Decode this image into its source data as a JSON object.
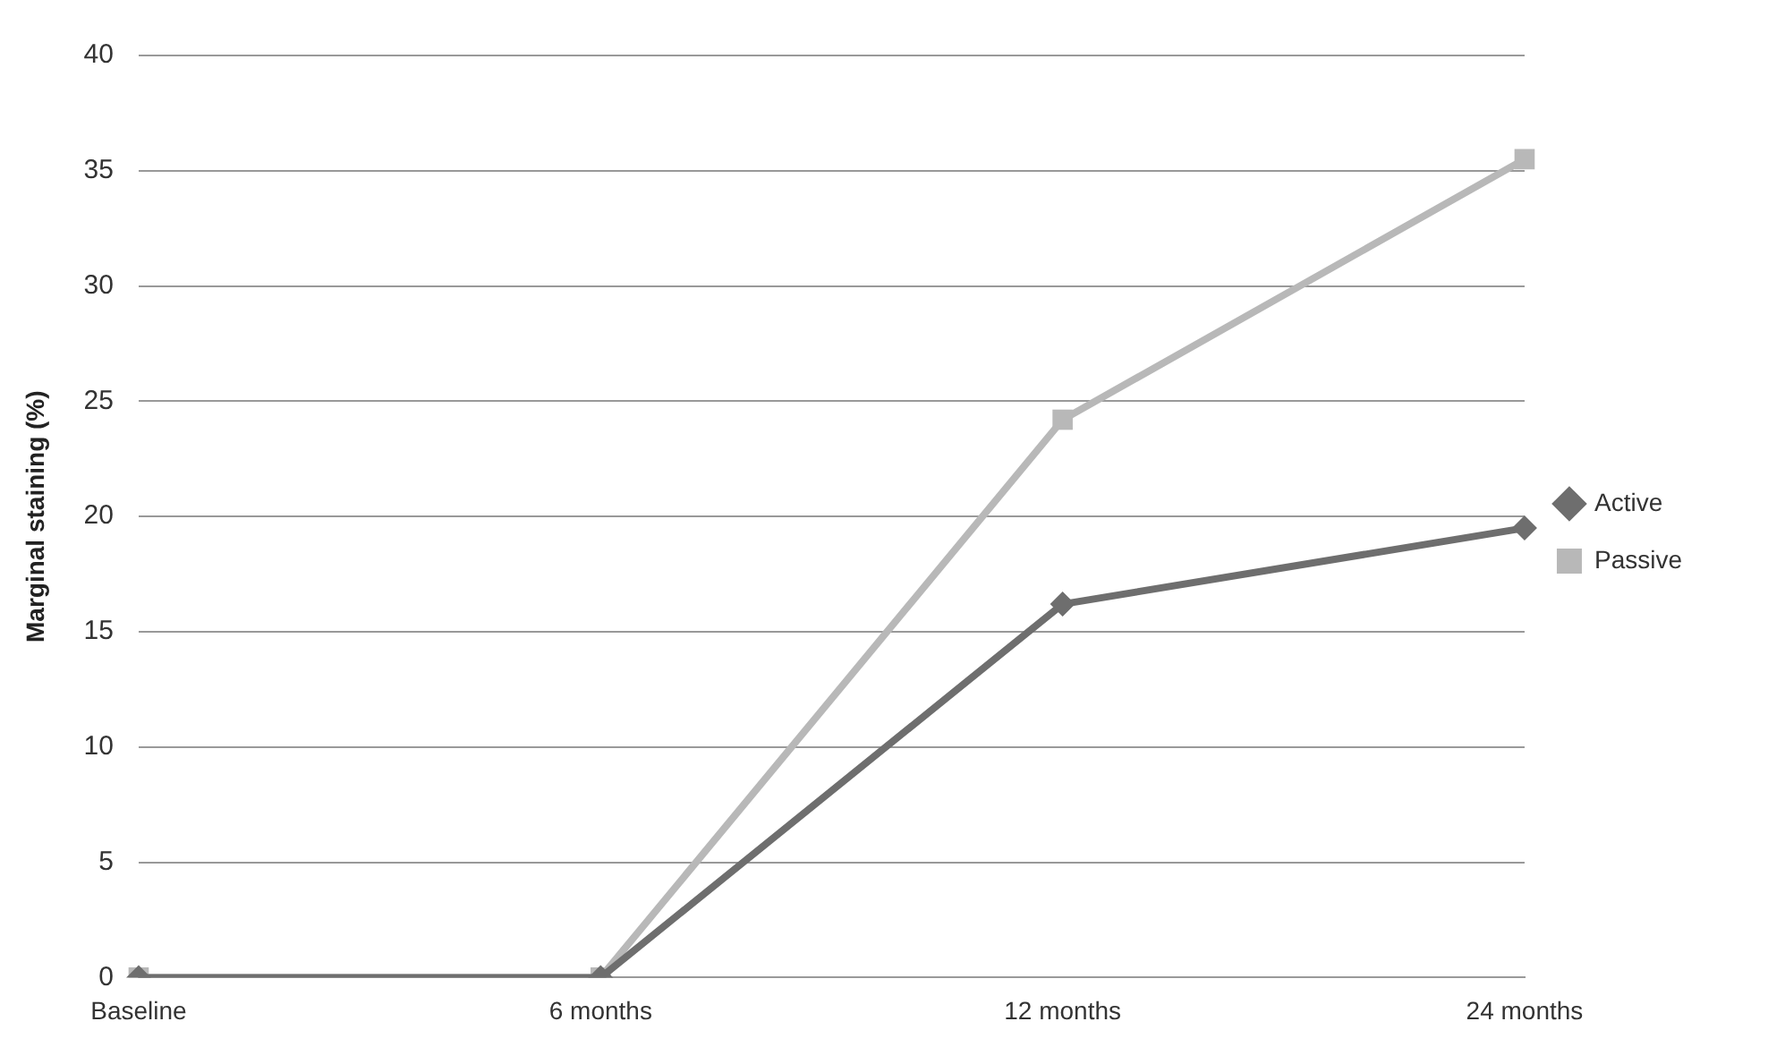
{
  "chart_data": {
    "type": "line",
    "ylabel": "Marginal staining (%)",
    "categories": [
      "Baseline",
      "6 months",
      "12 months",
      "24 months"
    ],
    "series": [
      {
        "name": "Active",
        "color": "#6e6e6e",
        "marker": "diamond",
        "values": [
          0,
          0,
          16.2,
          19.5
        ]
      },
      {
        "name": "Passive",
        "color": "#b8b8b8",
        "marker": "square",
        "values": [
          0,
          0,
          24.2,
          35.5
        ]
      }
    ],
    "ylim": [
      0,
      40
    ],
    "yticks": [
      0,
      5,
      10,
      15,
      20,
      25,
      30,
      35,
      40
    ],
    "grid": "y",
    "legend": "right"
  }
}
